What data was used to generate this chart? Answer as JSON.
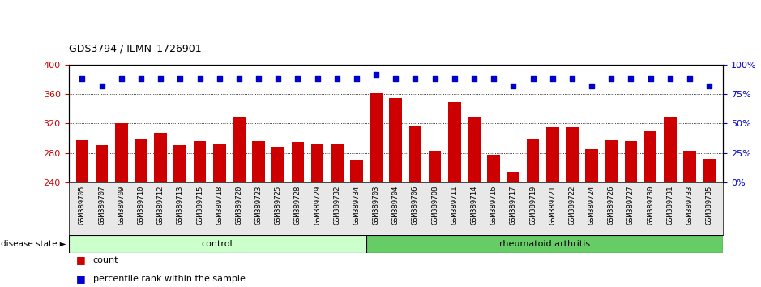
{
  "title": "GDS3794 / ILMN_1726901",
  "samples": [
    "GSM389705",
    "GSM389707",
    "GSM389709",
    "GSM389710",
    "GSM389712",
    "GSM389713",
    "GSM389715",
    "GSM389718",
    "GSM389720",
    "GSM389723",
    "GSM389725",
    "GSM389728",
    "GSM389729",
    "GSM389732",
    "GSM389734",
    "GSM389703",
    "GSM389704",
    "GSM389706",
    "GSM389708",
    "GSM389711",
    "GSM389714",
    "GSM389716",
    "GSM389717",
    "GSM389719",
    "GSM389721",
    "GSM389722",
    "GSM389724",
    "GSM389726",
    "GSM389727",
    "GSM389730",
    "GSM389731",
    "GSM389733",
    "GSM389735"
  ],
  "counts": [
    297,
    291,
    321,
    299,
    307,
    291,
    296,
    292,
    329,
    296,
    288,
    295,
    292,
    292,
    271,
    361,
    355,
    317,
    283,
    349,
    329,
    277,
    254,
    300,
    315,
    315,
    285,
    297,
    296,
    311,
    329,
    283,
    272
  ],
  "percentile_ranks": [
    88,
    82,
    88,
    88,
    88,
    88,
    88,
    88,
    88,
    88,
    88,
    88,
    88,
    88,
    88,
    92,
    88,
    88,
    88,
    88,
    88,
    88,
    82,
    88,
    88,
    88,
    82,
    88,
    88,
    88,
    88,
    88,
    82
  ],
  "n_control": 15,
  "n_ra": 18,
  "bar_color": "#cc0000",
  "dot_color": "#0000cc",
  "ylim_left": [
    240,
    400
  ],
  "ylim_right": [
    0,
    100
  ],
  "yticks_left": [
    240,
    280,
    320,
    360,
    400
  ],
  "yticks_right": [
    0,
    25,
    50,
    75,
    100
  ],
  "grid_values": [
    280,
    320,
    360
  ],
  "control_color": "#ccffcc",
  "ra_color": "#66cc66",
  "label_color_left": "#cc0000",
  "label_color_right": "#0000cc",
  "bg_color": "#e8e8e8"
}
